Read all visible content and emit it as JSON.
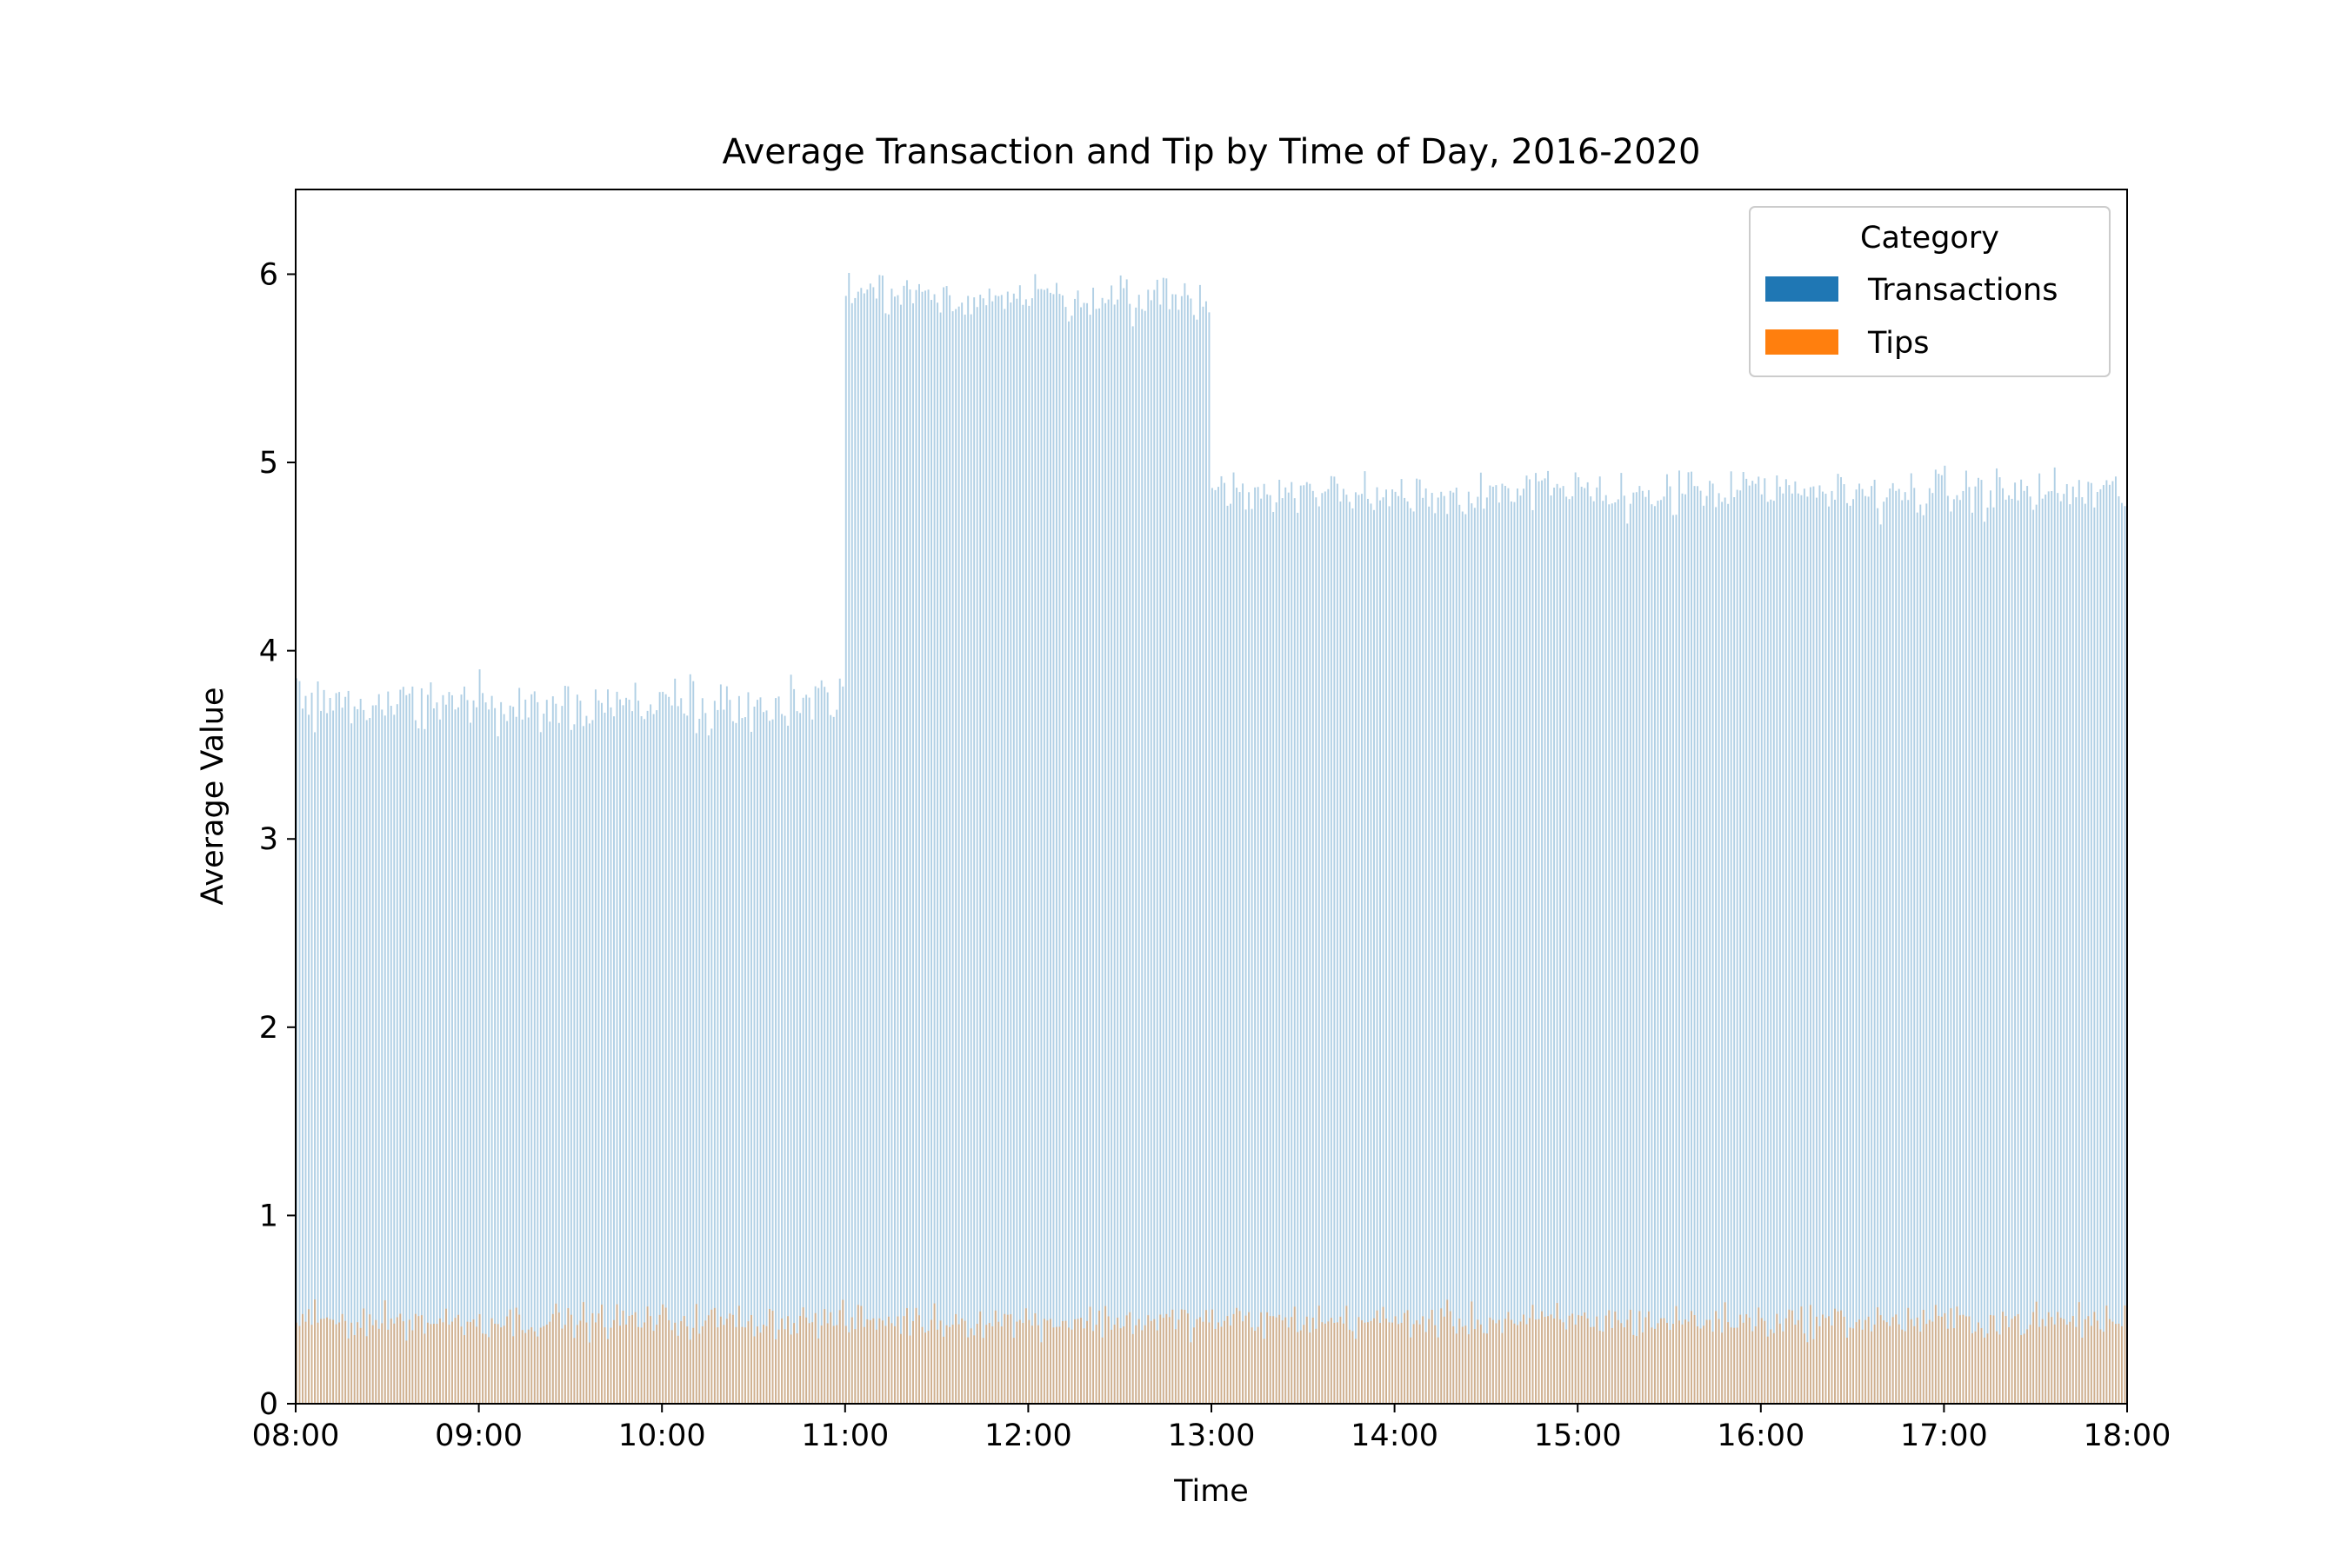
{
  "chart_data": {
    "type": "bar",
    "title": "Average Transaction and Tip by Time of Day, 2016-2020",
    "xlabel": "Time",
    "ylabel": "Average Value",
    "xlim": [
      "08:00",
      "18:00"
    ],
    "ylim": [
      0,
      6.45
    ],
    "x_ticks": [
      "08:00",
      "09:00",
      "10:00",
      "11:00",
      "12:00",
      "13:00",
      "14:00",
      "15:00",
      "16:00",
      "17:00",
      "18:00"
    ],
    "y_ticks": [
      "0",
      "1",
      "2",
      "3",
      "4",
      "5",
      "6"
    ],
    "bin_minutes": 1,
    "grid": false,
    "legend": {
      "title": "Category",
      "placement": "top-right",
      "entries": [
        "Transactions",
        "Tips"
      ]
    },
    "series": [
      {
        "name": "Transactions",
        "color": "#1f77b4",
        "alpha": 0.35,
        "segments": [
          {
            "start": "08:00",
            "end": "11:00",
            "mean": 3.72,
            "jitter": 0.14
          },
          {
            "start": "11:00",
            "end": "13:00",
            "mean": 5.88,
            "jitter": 0.12
          },
          {
            "start": "13:00",
            "end": "18:00",
            "mean": 4.84,
            "jitter": 0.13
          }
        ]
      },
      {
        "name": "Tips",
        "color": "#ff7f0e",
        "alpha": 0.4,
        "segments": [
          {
            "start": "08:00",
            "end": "18:00",
            "mean": 0.44,
            "jitter": 0.09
          }
        ]
      }
    ]
  }
}
